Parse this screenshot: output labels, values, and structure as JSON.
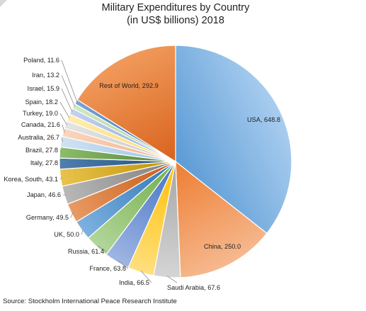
{
  "chart_data": {
    "type": "pie",
    "title": "Military Expenditures by Country",
    "subtitle": "(in US$ billions) 2018",
    "source": "Source: Stockholm International Peace Research Institute",
    "slices": [
      {
        "label": "USA",
        "value": 648.8,
        "text": "USA, 648.8",
        "color": "#5b9bd5",
        "color2": "#a9cdef"
      },
      {
        "label": "China",
        "value": 250.0,
        "text": "China, 250.0",
        "color": "#ed7d31",
        "color2": "#f6b98f"
      },
      {
        "label": "Saudi Arabia",
        "value": 67.6,
        "text": "Saudi Arabia, 67.6",
        "color": "#a5a5a5",
        "color2": "#d5d5d5"
      },
      {
        "label": "India",
        "value": 66.5,
        "text": "India, 66.5",
        "color": "#ffc000",
        "color2": "#ffdf7f"
      },
      {
        "label": "France",
        "value": 63.8,
        "text": "France, 63.8",
        "color": "#4472c4",
        "color2": "#9fb6e3"
      },
      {
        "label": "Russia",
        "value": 61.4,
        "text": "Russia, 61.4",
        "color": "#70ad47",
        "color2": "#b3d69b"
      },
      {
        "label": "UK",
        "value": 50.0,
        "text": "UK, 50.0",
        "color": "#2e75b6",
        "color2": "#7eb1df"
      },
      {
        "label": "Germany",
        "value": 49.5,
        "text": "Germany, 49.5",
        "color": "#c55a11",
        "color2": "#e99a64"
      },
      {
        "label": "Japan",
        "value": 46.6,
        "text": "Japan, 46.6",
        "color": "#7f7f7f",
        "color2": "#b8b8b8"
      },
      {
        "label": "Korea, South",
        "value": 43.1,
        "text": "Korea, South, 43.1",
        "color": "#bf9000",
        "color2": "#e8c34d"
      },
      {
        "label": "Italy",
        "value": 27.8,
        "text": "Italy, 27.8",
        "color": "#1f4e79",
        "color2": "#4f7fae"
      },
      {
        "label": "Brazil",
        "value": 27.8,
        "text": "Brazil, 27.8",
        "color": "#548235",
        "color2": "#8cbd69"
      },
      {
        "label": "Australia",
        "value": 26.7,
        "text": "Australia, 26.7",
        "color": "#9dc3e6",
        "color2": "#cfe2f3"
      },
      {
        "label": "Canada",
        "value": 21.6,
        "text": "Canada, 21.6",
        "color": "#f4b183",
        "color2": "#f9d6be"
      },
      {
        "label": "Turkey",
        "value": 19.0,
        "text": "Turkey, 19.0",
        "color": "#c9c9c9",
        "color2": "#e4e4e4"
      },
      {
        "label": "Spain",
        "value": 18.2,
        "text": "Spain, 18.2",
        "color": "#ffd966",
        "color2": "#ffecb0"
      },
      {
        "label": "Israel",
        "value": 15.9,
        "text": "Israel, 15.9",
        "color": "#8faadc",
        "color2": "#c3d2ee"
      },
      {
        "label": "Iran",
        "value": 13.2,
        "text": "Iran, 13.2",
        "color": "#a9d18e",
        "color2": "#d3e8c4"
      },
      {
        "label": "Poland",
        "value": 11.6,
        "text": "Poland, 11.6",
        "color": "#3a6fb0",
        "color2": "#7aa3d6"
      },
      {
        "label": "Rest of World",
        "value": 292.9,
        "text": "Rest of World, 292.9",
        "color": "#d8631c",
        "color2": "#f19a5c"
      }
    ]
  }
}
